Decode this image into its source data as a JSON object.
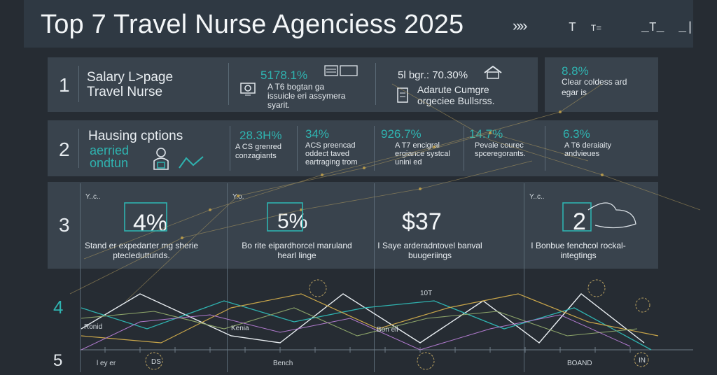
{
  "header": {
    "title": "Top 7 Travel Nurse Agenciess 2025",
    "arrows": "»»",
    "icons": [
      "T",
      "T=",
      "_T_",
      "_|"
    ]
  },
  "rows": [
    {
      "number": "1",
      "heading": "Salary L>page Travel Nurse",
      "cells": [
        {
          "value": "5178.1%",
          "text": "A T6 bogtan ga issuicle eri assymera syarit."
        },
        {
          "value": "5l bgr.: 70.30%",
          "text": "Adarute Cumgre orgeciee Bullsrss."
        },
        {
          "value": "8.8%",
          "text": "Clear coldess ard egar is"
        }
      ]
    },
    {
      "number": "2",
      "heading": "Hausing cptions",
      "subheading": "aerried ondtun",
      "cells": [
        {
          "value": "28.3H%",
          "text": "A CS grenred conzagiants"
        },
        {
          "value": "34%",
          "text": "ACS preencad oddect taved eartraging trom"
        },
        {
          "value": "926.7%",
          "text": "A T7 encigral ergiance systcal unini ed"
        },
        {
          "value": "14.7%",
          "text": "Pevale courec spceregorants."
        },
        {
          "value": "6.3%",
          "text": "A T6 deraiaity andvieues"
        }
      ]
    },
    {
      "number": "3",
      "cells": [
        {
          "label": "Y..c..",
          "value": "4%",
          "caption": "Stand er expedarter mg sherie ptecleduttunds."
        },
        {
          "label": "Y.o.",
          "value": "5%",
          "caption": "Bo rite eipardhorcel maruland hearl linge"
        },
        {
          "label": "",
          "value": "$37",
          "caption": "I Saye arderadntovel banval buugeriings"
        },
        {
          "label": "Y..c..",
          "value": "2",
          "caption": "I Bonbue fenchcol rockal-integtings"
        }
      ]
    }
  ],
  "bottom": {
    "row4": "4",
    "row5": "5",
    "labels": [
      "Ronid",
      "Kenia",
      "Bon ell",
      "l ey er",
      "DS",
      "Bench",
      "10T",
      "BOAND",
      "IN"
    ]
  }
}
